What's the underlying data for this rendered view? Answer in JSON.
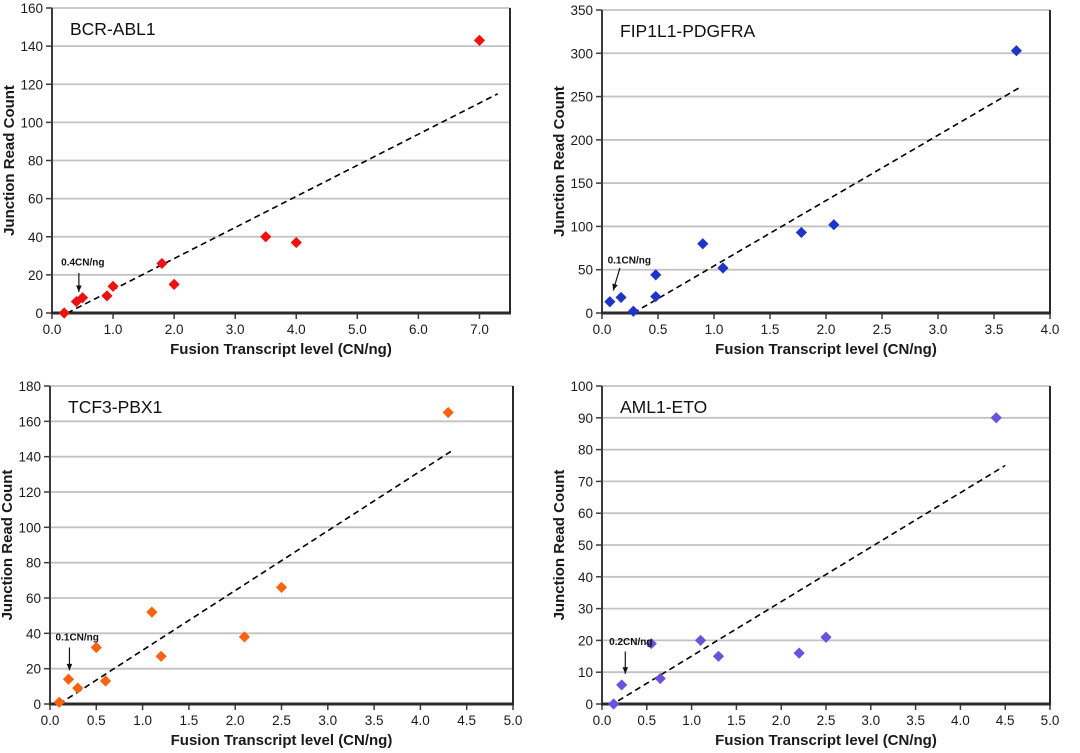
{
  "chart_data": [
    {
      "type": "scatter",
      "title": "BCR-ABL1",
      "xlabel": "Fusion Transcript level (CN/ng)",
      "ylabel": "Junction Read Count",
      "marker_color": "#ee1111",
      "marker_shape": "diamond",
      "grid": "horizontal",
      "legend": "none",
      "xlim": [
        0,
        7.5
      ],
      "ylim": [
        0,
        160
      ],
      "xticks": [
        0,
        1,
        2,
        3,
        4,
        5,
        6,
        7
      ],
      "xtick_labels": [
        "0.0",
        "1.0",
        "2.0",
        "3.0",
        "4.0",
        "5.0",
        "6.0",
        "7.0"
      ],
      "yticks": [
        0,
        20,
        40,
        60,
        80,
        100,
        120,
        140,
        160
      ],
      "ytick_labels": [
        "0",
        "20",
        "40",
        "60",
        "80",
        "100",
        "120",
        "140",
        "160"
      ],
      "points": [
        [
          0.2,
          0
        ],
        [
          0.4,
          6
        ],
        [
          0.5,
          8
        ],
        [
          0.9,
          9
        ],
        [
          1.0,
          14
        ],
        [
          1.8,
          26
        ],
        [
          2.0,
          15
        ],
        [
          3.5,
          40
        ],
        [
          4.0,
          37
        ],
        [
          7.0,
          143
        ]
      ],
      "trendline": {
        "style": "dashed",
        "color": "#000000",
        "from": [
          0.25,
          0
        ],
        "to": [
          7.3,
          115
        ]
      },
      "annotation": {
        "text": "0.4CN/ng",
        "text_pos": [
          0.15,
          25
        ],
        "arrow_from": [
          0.44,
          21
        ],
        "arrow_to": [
          0.44,
          11
        ]
      }
    },
    {
      "type": "scatter",
      "title": "FIP1L1-PDGFRA",
      "xlabel": "Fusion Transcript level (CN/ng)",
      "ylabel": "Junction Read Count",
      "marker_color": "#1f35c8",
      "marker_shape": "diamond",
      "grid": "horizontal",
      "legend": "none",
      "xlim": [
        0,
        4.0
      ],
      "ylim": [
        0,
        350
      ],
      "xticks": [
        0,
        0.5,
        1,
        1.5,
        2,
        2.5,
        3,
        3.5,
        4
      ],
      "xtick_labels": [
        "0.0",
        "0.5",
        "1.0",
        "1.5",
        "2.0",
        "2.5",
        "3.0",
        "3.5",
        "4.0"
      ],
      "yticks": [
        0,
        50,
        100,
        150,
        200,
        250,
        300,
        350
      ],
      "ytick_labels": [
        "0",
        "50",
        "100",
        "150",
        "200",
        "250",
        "300",
        "350"
      ],
      "points": [
        [
          0.07,
          13
        ],
        [
          0.17,
          18
        ],
        [
          0.28,
          2
        ],
        [
          0.48,
          44
        ],
        [
          0.48,
          19
        ],
        [
          0.9,
          80
        ],
        [
          1.08,
          52
        ],
        [
          1.78,
          93
        ],
        [
          2.07,
          102
        ],
        [
          3.7,
          303
        ]
      ],
      "trendline": {
        "style": "dashed",
        "color": "#000000",
        "from": [
          0.28,
          0
        ],
        "to": [
          3.75,
          262
        ]
      },
      "annotation": {
        "text": "0.1CN/ng",
        "text_pos": [
          0.05,
          57
        ],
        "arrow_from": [
          0.16,
          52
        ],
        "arrow_to": [
          0.1,
          26
        ]
      }
    },
    {
      "type": "scatter",
      "title": "TCF3-PBX1",
      "xlabel": "Fusion Transcript level (CN/ng)",
      "ylabel": "Junction Read Count",
      "marker_color": "#f96211",
      "marker_shape": "diamond",
      "grid": "horizontal",
      "legend": "none",
      "xlim": [
        0,
        5.0
      ],
      "ylim": [
        0,
        180
      ],
      "xticks": [
        0,
        0.5,
        1,
        1.5,
        2,
        2.5,
        3,
        3.5,
        4,
        4.5,
        5
      ],
      "xtick_labels": [
        "0.0",
        "0.5",
        "1.0",
        "1.5",
        "2.0",
        "2.5",
        "3.0",
        "3.5",
        "4.0",
        "4.5",
        "5.0"
      ],
      "yticks": [
        0,
        20,
        40,
        60,
        80,
        100,
        120,
        140,
        160,
        180
      ],
      "ytick_labels": [
        "0",
        "20",
        "40",
        "60",
        "80",
        "100",
        "120",
        "140",
        "160",
        "180"
      ],
      "points": [
        [
          0.1,
          1
        ],
        [
          0.2,
          14
        ],
        [
          0.3,
          9
        ],
        [
          0.5,
          32
        ],
        [
          0.6,
          13
        ],
        [
          1.1,
          52
        ],
        [
          1.2,
          27
        ],
        [
          2.1,
          38
        ],
        [
          2.5,
          66
        ],
        [
          4.3,
          165
        ]
      ],
      "trendline": {
        "style": "dashed",
        "color": "#000000",
        "from": [
          0.1,
          0
        ],
        "to": [
          4.33,
          143
        ]
      },
      "annotation": {
        "text": "0.1CN/ng",
        "text_pos": [
          0.06,
          36
        ],
        "arrow_from": [
          0.21,
          32
        ],
        "arrow_to": [
          0.21,
          19
        ]
      }
    },
    {
      "type": "scatter",
      "title": "AML1-ETO",
      "xlabel": "Fusion Transcript level (CN/ng)",
      "ylabel": "Junction Read Count",
      "marker_color": "#6b52dd",
      "marker_shape": "diamond",
      "grid": "horizontal",
      "legend": "none",
      "xlim": [
        0,
        5.0
      ],
      "ylim": [
        0,
        100
      ],
      "xticks": [
        0,
        0.5,
        1,
        1.5,
        2,
        2.5,
        3,
        3.5,
        4,
        4.5,
        5
      ],
      "xtick_labels": [
        "0.0",
        "0.5",
        "1.0",
        "1.5",
        "2.0",
        "2.5",
        "3.0",
        "3.5",
        "4.0",
        "4.5",
        "5.0"
      ],
      "yticks": [
        0,
        10,
        20,
        30,
        40,
        50,
        60,
        70,
        80,
        90,
        100
      ],
      "ytick_labels": [
        "0",
        "10",
        "20",
        "30",
        "40",
        "50",
        "60",
        "70",
        "80",
        "90",
        "100"
      ],
      "points": [
        [
          0.13,
          0
        ],
        [
          0.22,
          6
        ],
        [
          0.55,
          19
        ],
        [
          0.65,
          8
        ],
        [
          1.1,
          20
        ],
        [
          1.3,
          15
        ],
        [
          2.2,
          16
        ],
        [
          2.5,
          21
        ],
        [
          4.4,
          90
        ]
      ],
      "trendline": {
        "style": "dashed",
        "color": "#000000",
        "from": [
          0.18,
          1
        ],
        "to": [
          4.5,
          75
        ]
      },
      "annotation": {
        "text": "0.2CN/ng",
        "text_pos": [
          0.08,
          18.5
        ],
        "arrow_from": [
          0.26,
          16.5
        ],
        "arrow_to": [
          0.26,
          9.5
        ]
      }
    }
  ],
  "style": {
    "grid_color": "#c2c2c2",
    "axis_color": "#3c3c3c",
    "text_color": "#1a1a1a",
    "background": "#ffffff"
  }
}
